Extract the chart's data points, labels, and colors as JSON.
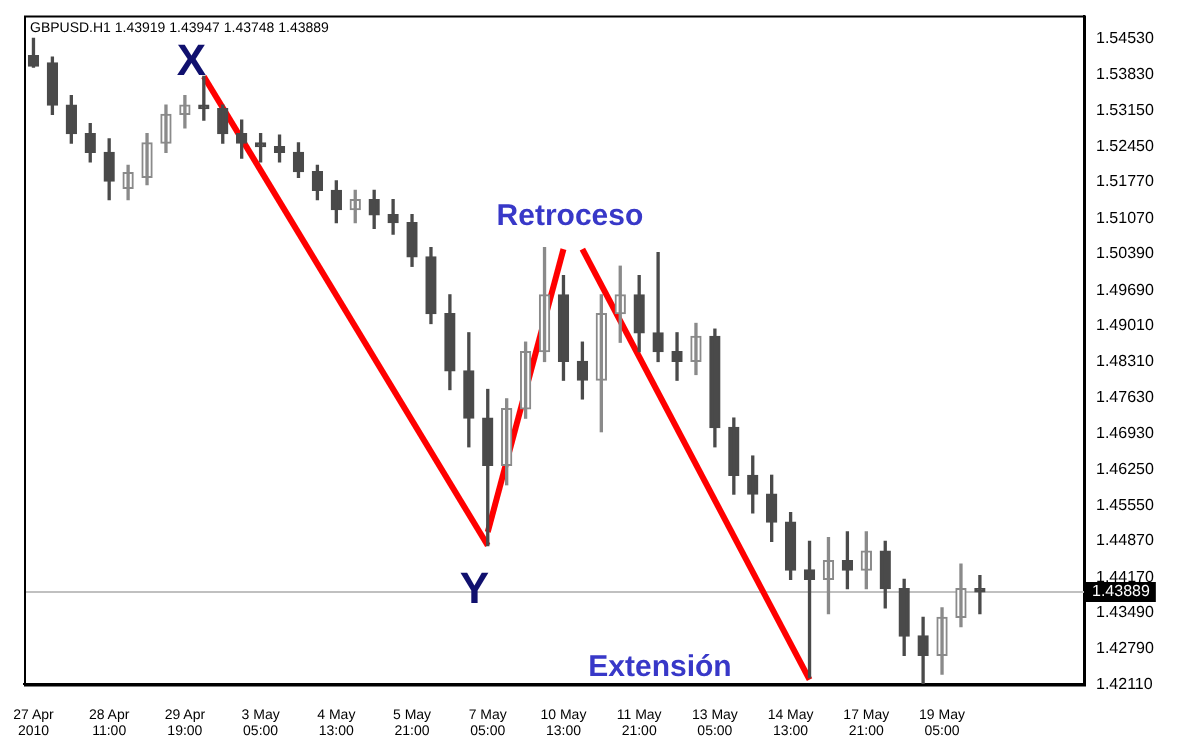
{
  "chart_data": {
    "type": "candlestick",
    "title": "GBPUSD.H1 1.43919 1.43947 1.43748 1.43889",
    "categories": [
      "27 Apr 2010",
      null,
      null,
      null,
      "28 Apr 11:00",
      null,
      null,
      null,
      "29 Apr 19:00",
      null,
      null,
      null,
      "3 May 05:00",
      null,
      null,
      null,
      "4 May 13:00",
      null,
      null,
      null,
      "5 May 21:00",
      null,
      null,
      null,
      "7 May 05:00",
      null,
      null,
      null,
      "10 May 13:00",
      null,
      null,
      null,
      "11 May 21:00",
      null,
      null,
      null,
      "13 May 05:00",
      null,
      null,
      null,
      "14 May 13:00",
      null,
      null,
      null,
      "17 May 21:00",
      null,
      null,
      null,
      "19 May 05:00",
      null,
      null,
      null,
      null,
      null,
      null,
      null
    ],
    "ohlc": [
      [
        1.542,
        1.5453,
        1.5398,
        1.54
      ],
      [
        1.5406,
        1.5417,
        1.5307,
        1.5325
      ],
      [
        1.5325,
        1.5343,
        1.5252,
        1.527
      ],
      [
        1.527,
        1.5289,
        1.5216,
        1.5234
      ],
      [
        1.5234,
        1.526,
        1.5143,
        1.5179
      ],
      [
        1.5165,
        1.5209,
        1.5143,
        1.5195
      ],
      [
        1.5186,
        1.527,
        1.5172,
        1.5252
      ],
      [
        1.5252,
        1.5325,
        1.5234,
        1.5307
      ],
      [
        1.5307,
        1.5343,
        1.5281,
        1.5325
      ],
      [
        1.5325,
        1.538,
        1.5296,
        1.5318
      ],
      [
        1.5318,
        1.5325,
        1.5252,
        1.527
      ],
      [
        1.527,
        1.5296,
        1.5223,
        1.5252
      ],
      [
        1.5252,
        1.527,
        1.5216,
        1.5245
      ],
      [
        1.5245,
        1.5267,
        1.5216,
        1.5234
      ],
      [
        1.5234,
        1.5252,
        1.5186,
        1.5197
      ],
      [
        1.5197,
        1.5209,
        1.5143,
        1.5161
      ],
      [
        1.5161,
        1.5179,
        1.5099,
        1.5124
      ],
      [
        1.5124,
        1.5161,
        1.5099,
        1.5143
      ],
      [
        1.5143,
        1.5161,
        1.5088,
        1.5114
      ],
      [
        1.5114,
        1.5143,
        1.5077,
        1.5099
      ],
      [
        1.5099,
        1.5114,
        1.5015,
        1.5033
      ],
      [
        1.5033,
        1.5051,
        1.4905,
        1.4924
      ],
      [
        1.4924,
        1.496,
        1.4778,
        1.4814
      ],
      [
        1.4814,
        1.4887,
        1.4668,
        1.4723
      ],
      [
        1.4723,
        1.4778,
        1.4478,
        1.4632
      ],
      [
        1.4632,
        1.476,
        1.4595,
        1.4741
      ],
      [
        1.4741,
        1.4869,
        1.4723,
        1.4851
      ],
      [
        1.4851,
        1.5051,
        1.4832,
        1.496
      ],
      [
        1.496,
        1.4997,
        1.4796,
        1.4832
      ],
      [
        1.4832,
        1.4869,
        1.476,
        1.4796
      ],
      [
        1.4796,
        1.496,
        1.4697,
        1.4924
      ],
      [
        1.4924,
        1.5015,
        1.4869,
        1.496
      ],
      [
        1.496,
        1.4997,
        1.4851,
        1.4887
      ],
      [
        1.4887,
        1.5041,
        1.4832,
        1.4851
      ],
      [
        1.4851,
        1.4887,
        1.4796,
        1.4832
      ],
      [
        1.4832,
        1.4905,
        1.4807,
        1.488
      ],
      [
        1.488,
        1.4894,
        1.4668,
        1.4705
      ],
      [
        1.4705,
        1.4723,
        1.4577,
        1.4613
      ],
      [
        1.4613,
        1.465,
        1.4541,
        1.4577
      ],
      [
        1.4577,
        1.4613,
        1.4486,
        1.4523
      ],
      [
        1.4523,
        1.4541,
        1.4413,
        1.4431
      ],
      [
        1.4431,
        1.4486,
        1.4224,
        1.4413
      ],
      [
        1.4413,
        1.4493,
        1.4347,
        1.4449
      ],
      [
        1.4449,
        1.4504,
        1.4395,
        1.4431
      ],
      [
        1.4431,
        1.4504,
        1.4395,
        1.4467
      ],
      [
        1.4467,
        1.4486,
        1.4358,
        1.4395
      ],
      [
        1.4395,
        1.4413,
        1.4267,
        1.4304
      ],
      [
        1.4304,
        1.434,
        1.4213,
        1.4267
      ],
      [
        1.4267,
        1.4358,
        1.4231,
        1.434
      ],
      [
        1.434,
        1.4442,
        1.4322,
        1.4395
      ],
      [
        1.4395,
        1.442,
        1.4347,
        1.4389
      ],
      null,
      null,
      null,
      null,
      null
    ],
    "series": [
      {
        "type": "line",
        "color": "#ff0000",
        "values": [
          null,
          null,
          null,
          null,
          null,
          null,
          null,
          null,
          null,
          1.538,
          null,
          null,
          null,
          null,
          null,
          null,
          null,
          null,
          null,
          null,
          null,
          null,
          null,
          null,
          1.4478,
          null,
          null,
          null,
          null,
          null,
          null,
          null,
          null,
          null,
          null,
          null,
          null,
          null,
          null,
          null,
          null,
          null,
          null,
          null,
          null,
          null,
          null,
          null,
          null,
          null,
          null,
          null,
          null,
          null,
          null,
          null
        ]
      },
      {
        "type": "line",
        "color": "#ff0000",
        "values": [
          null,
          null,
          null,
          null,
          null,
          null,
          null,
          null,
          null,
          null,
          null,
          null,
          null,
          null,
          null,
          null,
          null,
          null,
          null,
          null,
          null,
          null,
          null,
          null,
          1.4504,
          null,
          null,
          null,
          1.5048,
          null,
          null,
          null,
          null,
          null,
          null,
          null,
          null,
          null,
          null,
          null,
          null,
          null,
          null,
          null,
          null,
          null,
          null,
          null,
          null,
          null,
          null,
          null,
          null,
          null,
          null,
          null
        ]
      },
      {
        "type": "line",
        "color": "#ff0000",
        "values": [
          null,
          null,
          null,
          null,
          null,
          null,
          null,
          null,
          null,
          null,
          null,
          null,
          null,
          null,
          null,
          null,
          null,
          null,
          null,
          null,
          null,
          null,
          null,
          null,
          null,
          null,
          null,
          null,
          null,
          1.5048,
          null,
          null,
          null,
          null,
          null,
          null,
          null,
          null,
          null,
          null,
          null,
          1.422,
          null,
          null,
          null,
          null,
          null,
          null,
          null,
          null,
          null,
          null,
          null,
          null,
          null,
          null
        ]
      }
    ],
    "ylim": [
      1.4211,
      1.5497
    ],
    "yticks": [
      {
        "value": 1.5453,
        "label": "1.54530"
      },
      {
        "value": 1.5383,
        "label": "1.53830"
      },
      {
        "value": 1.5315,
        "label": "1.53150"
      },
      {
        "value": 1.5245,
        "label": "1.52450"
      },
      {
        "value": 1.5177,
        "label": "1.51770"
      },
      {
        "value": 1.5107,
        "label": "1.51070"
      },
      {
        "value": 1.5039,
        "label": "1.50390"
      },
      {
        "value": 1.4969,
        "label": "1.49690"
      },
      {
        "value": 1.4901,
        "label": "1.49010"
      },
      {
        "value": 1.4831,
        "label": "1.48310"
      },
      {
        "value": 1.4763,
        "label": "1.47630"
      },
      {
        "value": 1.4693,
        "label": "1.46930"
      },
      {
        "value": 1.4625,
        "label": "1.46250"
      },
      {
        "value": 1.4555,
        "label": "1.45550"
      },
      {
        "value": 1.4487,
        "label": "1.44870"
      },
      {
        "value": 1.4417,
        "label": "1.44170"
      },
      {
        "value": 1.4349,
        "label": "1.43490"
      },
      {
        "value": 1.4279,
        "label": "1.42790"
      },
      {
        "value": 1.4211,
        "label": "1.42110"
      }
    ],
    "ref_lines": [
      {
        "axis": "y",
        "value": 1.43889,
        "label": "1.43889",
        "color": "#c0c0c0"
      }
    ],
    "annotations": [
      "X",
      "Y",
      "Retroceso",
      "Extensión"
    ],
    "grid": false,
    "legend": false
  }
}
